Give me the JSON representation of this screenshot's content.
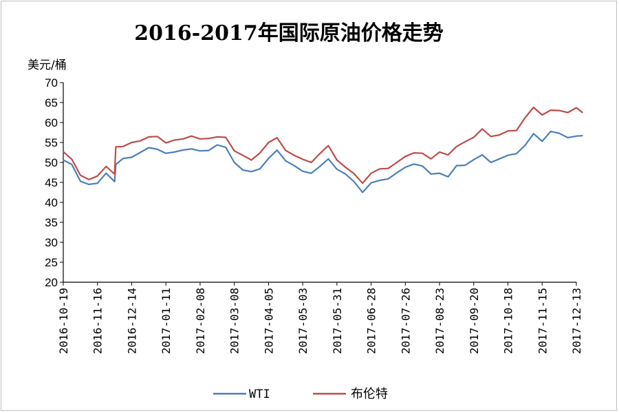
{
  "chart_data": {
    "type": "line",
    "title": "2016-2017年国际原油价格走势",
    "ylabel": "美元/桶",
    "xlabel": "",
    "ylim": [
      20,
      70
    ],
    "yticks": [
      20,
      25,
      30,
      35,
      40,
      45,
      50,
      55,
      60,
      65,
      70
    ],
    "grid": false,
    "legend_position": "bottom",
    "x_ticks": [
      "2016-10-19",
      "2016-11-16",
      "2016-12-14",
      "2017-01-11",
      "2017-02-08",
      "2017-03-08",
      "2017-04-05",
      "2017-05-03",
      "2017-05-31",
      "2017-06-28",
      "2017-07-26",
      "2017-08-23",
      "2017-09-20",
      "2017-10-18",
      "2017-11-15",
      "2017-12-13"
    ],
    "series": [
      {
        "name": "WTI",
        "color": "#4a7ebb",
        "x": [
          "2016-10-19",
          "2016-10-26",
          "2016-11-02",
          "2016-11-09",
          "2016-11-16",
          "2016-11-23",
          "2016-11-30",
          "2016-12-01",
          "2016-12-07",
          "2016-12-14",
          "2016-12-21",
          "2016-12-28",
          "2017-01-04",
          "2017-01-11",
          "2017-01-18",
          "2017-01-25",
          "2017-02-01",
          "2017-02-08",
          "2017-02-15",
          "2017-02-22",
          "2017-03-01",
          "2017-03-08",
          "2017-03-15",
          "2017-03-22",
          "2017-03-29",
          "2017-04-05",
          "2017-04-12",
          "2017-04-19",
          "2017-04-26",
          "2017-05-03",
          "2017-05-10",
          "2017-05-17",
          "2017-05-24",
          "2017-05-31",
          "2017-06-07",
          "2017-06-14",
          "2017-06-21",
          "2017-06-28",
          "2017-07-05",
          "2017-07-12",
          "2017-07-19",
          "2017-07-26",
          "2017-08-02",
          "2017-08-09",
          "2017-08-16",
          "2017-08-23",
          "2017-08-30",
          "2017-09-06",
          "2017-09-13",
          "2017-09-20",
          "2017-09-27",
          "2017-10-04",
          "2017-10-11",
          "2017-10-18",
          "2017-10-25",
          "2017-11-01",
          "2017-11-08",
          "2017-11-15",
          "2017-11-22",
          "2017-11-29",
          "2017-12-06",
          "2017-12-13",
          "2017-12-18"
        ],
        "values": [
          50.6,
          49.5,
          45.3,
          44.5,
          44.8,
          47.3,
          45.2,
          49.5,
          51.0,
          51.3,
          52.5,
          53.7,
          53.3,
          52.3,
          52.6,
          53.1,
          53.4,
          52.9,
          53.0,
          54.4,
          53.8,
          50.0,
          48.1,
          47.7,
          48.4,
          51.0,
          53.1,
          50.4,
          49.2,
          47.8,
          47.3,
          49.0,
          50.9,
          48.3,
          47.1,
          45.2,
          42.5,
          44.9,
          45.5,
          45.9,
          47.4,
          48.8,
          49.6,
          49.1,
          47.1,
          47.3,
          46.4,
          49.2,
          49.3,
          50.7,
          51.9,
          50.0,
          50.9,
          51.8,
          52.2,
          54.3,
          57.2,
          55.3,
          57.8,
          57.3,
          56.2,
          56.6,
          56.7
        ]
      },
      {
        "name": "布伦特",
        "color": "#be4b48",
        "x": [
          "2016-10-19",
          "2016-10-26",
          "2016-11-02",
          "2016-11-09",
          "2016-11-16",
          "2016-11-23",
          "2016-11-30",
          "2016-12-01",
          "2016-12-07",
          "2016-12-14",
          "2016-12-21",
          "2016-12-28",
          "2017-01-04",
          "2017-01-11",
          "2017-01-18",
          "2017-01-25",
          "2017-02-01",
          "2017-02-08",
          "2017-02-15",
          "2017-02-22",
          "2017-03-01",
          "2017-03-08",
          "2017-03-15",
          "2017-03-22",
          "2017-03-29",
          "2017-04-05",
          "2017-04-12",
          "2017-04-19",
          "2017-04-26",
          "2017-05-03",
          "2017-05-10",
          "2017-05-17",
          "2017-05-24",
          "2017-05-31",
          "2017-06-07",
          "2017-06-14",
          "2017-06-21",
          "2017-06-28",
          "2017-07-05",
          "2017-07-12",
          "2017-07-19",
          "2017-07-26",
          "2017-08-02",
          "2017-08-09",
          "2017-08-16",
          "2017-08-23",
          "2017-08-30",
          "2017-09-06",
          "2017-09-13",
          "2017-09-20",
          "2017-09-27",
          "2017-10-04",
          "2017-10-11",
          "2017-10-18",
          "2017-10-25",
          "2017-11-01",
          "2017-11-08",
          "2017-11-15",
          "2017-11-22",
          "2017-11-29",
          "2017-12-06",
          "2017-12-13",
          "2017-12-18"
        ],
        "values": [
          52.7,
          50.8,
          46.8,
          45.7,
          46.6,
          49.0,
          47.1,
          53.9,
          54.0,
          55.0,
          55.4,
          56.4,
          56.5,
          54.9,
          55.6,
          55.9,
          56.6,
          55.9,
          56.0,
          56.4,
          56.3,
          52.9,
          51.8,
          50.6,
          52.4,
          55.0,
          56.2,
          53.0,
          51.8,
          50.8,
          50.0,
          52.2,
          54.2,
          50.6,
          48.8,
          47.2,
          44.8,
          47.3,
          48.4,
          48.5,
          50.0,
          51.5,
          52.4,
          52.3,
          50.9,
          52.6,
          51.9,
          54.0,
          55.2,
          56.3,
          58.4,
          56.5,
          56.9,
          57.9,
          58.0,
          61.2,
          63.8,
          61.9,
          63.1,
          63.0,
          62.5,
          63.7,
          62.5
        ]
      }
    ]
  }
}
